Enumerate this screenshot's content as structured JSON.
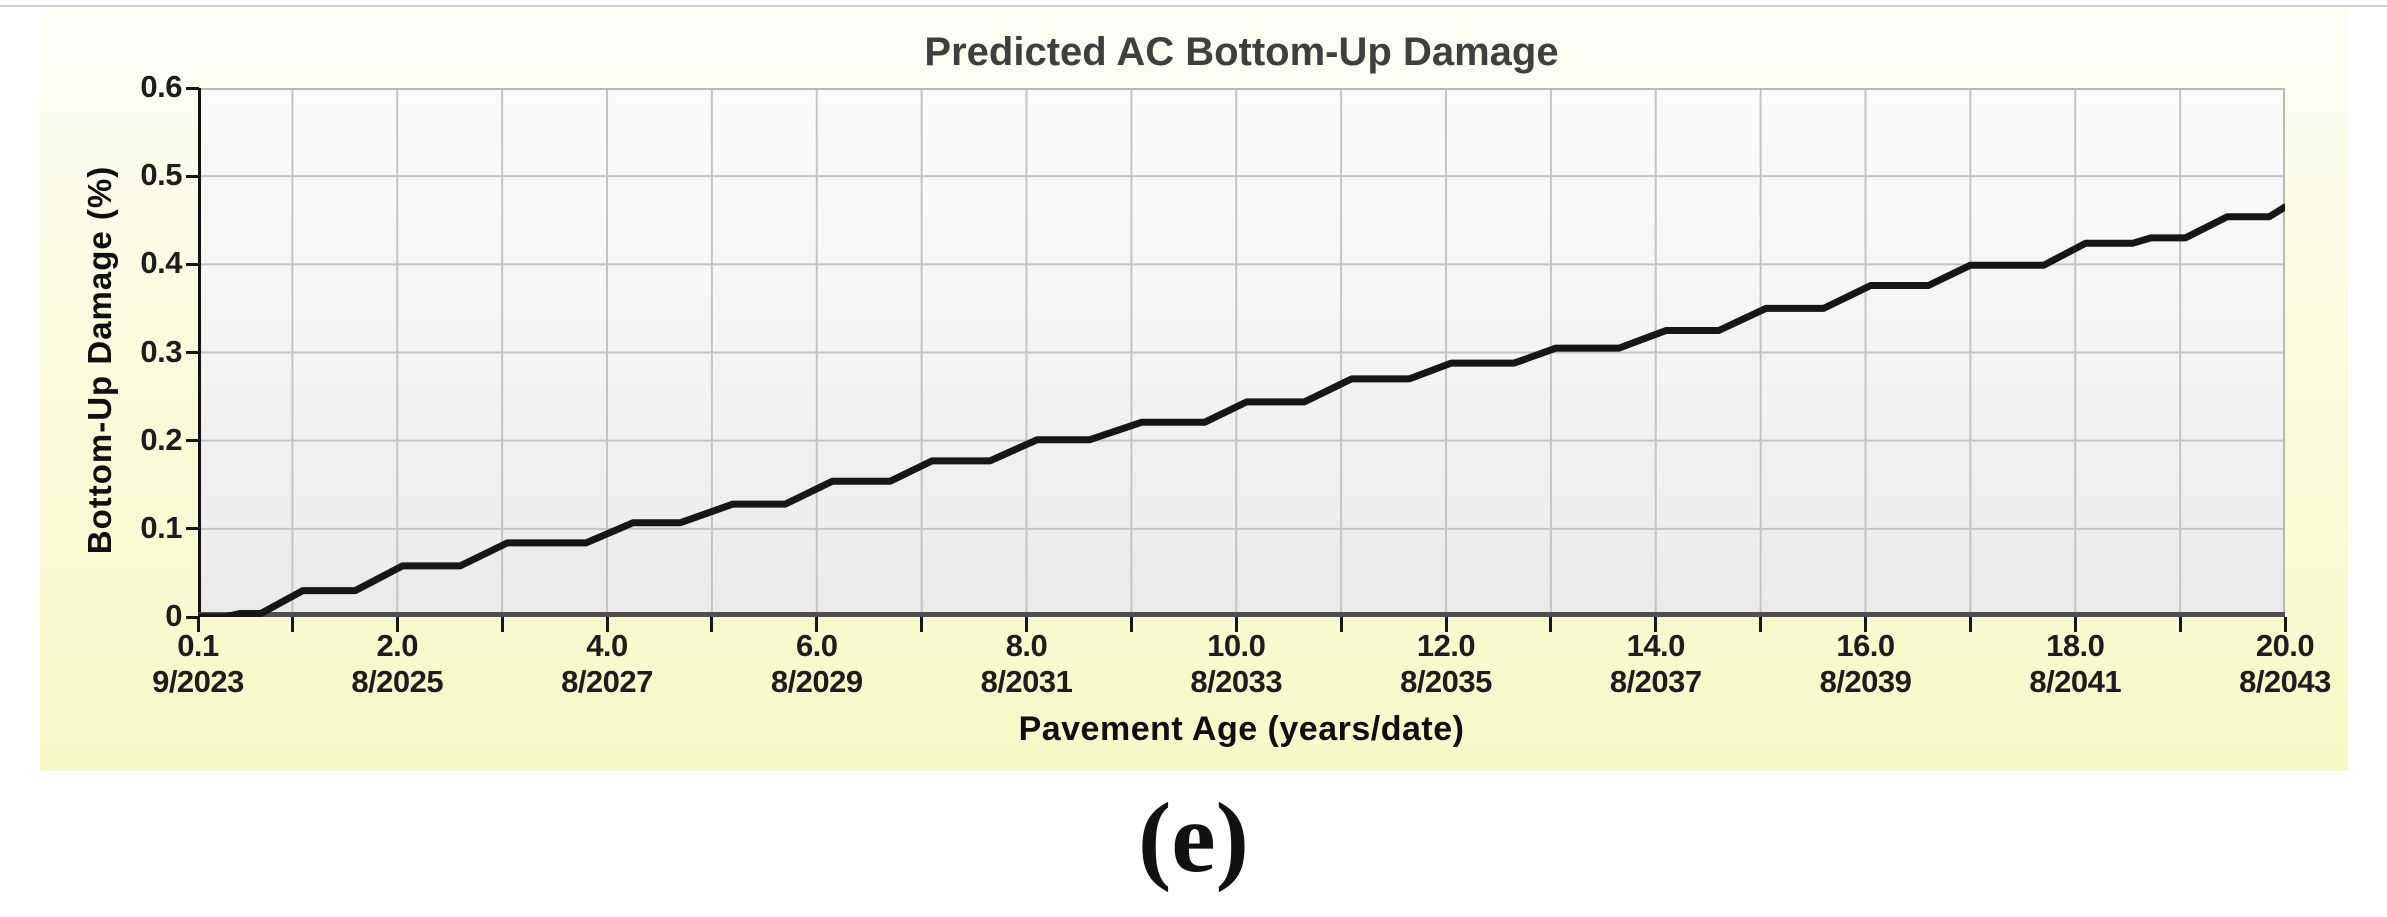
{
  "page": {
    "caption": "(e)"
  },
  "colors": {
    "panel_bg_top": "#fdfdf6",
    "panel_bg_bottom": "#f8f8c6",
    "plot_bg": "#f3f3f3",
    "gridline": "#c4c4c4",
    "plot_border": "#b9b9b9",
    "left_spine": "#111111",
    "bottom_spine": "#4f4f4f",
    "curve": "#161616",
    "title_text": "#3f3f3f",
    "label_text": "#1d1d1d"
  },
  "chart_data": {
    "type": "line",
    "title": "Predicted AC Bottom-Up Damage",
    "xlabel": "Pavement Age (years/date)",
    "ylabel": "Bottom-Up Damage (%)",
    "xlim": [
      0.1,
      20.0
    ],
    "ylim": [
      0,
      0.6
    ],
    "grid": true,
    "x_minor_tick_interval": 1,
    "x_major_ticks": [
      {
        "value": 0.1,
        "years": "0.1",
        "date": "9/2023"
      },
      {
        "value": 2.0,
        "years": "2.0",
        "date": "8/2025"
      },
      {
        "value": 4.0,
        "years": "4.0",
        "date": "8/2027"
      },
      {
        "value": 6.0,
        "years": "6.0",
        "date": "8/2029"
      },
      {
        "value": 8.0,
        "years": "8.0",
        "date": "8/2031"
      },
      {
        "value": 10.0,
        "years": "10.0",
        "date": "8/2033"
      },
      {
        "value": 12.0,
        "years": "12.0",
        "date": "8/2035"
      },
      {
        "value": 14.0,
        "years": "14.0",
        "date": "8/2037"
      },
      {
        "value": 16.0,
        "years": "16.0",
        "date": "8/2039"
      },
      {
        "value": 18.0,
        "years": "18.0",
        "date": "8/2041"
      },
      {
        "value": 20.0,
        "years": "20.0",
        "date": "8/2043"
      }
    ],
    "y_ticks": [
      0,
      0.1,
      0.2,
      0.3,
      0.4,
      0.5,
      0.6
    ],
    "y_tick_labels": [
      "0",
      "0.1",
      "0.2",
      "0.3",
      "0.4",
      "0.5",
      "0.6"
    ],
    "series": [
      {
        "name": "Predicted AC bottom-up damage",
        "points": [
          [
            0.1,
            0.0
          ],
          [
            0.35,
            0.0
          ],
          [
            0.5,
            0.004
          ],
          [
            0.7,
            0.004
          ],
          [
            1.1,
            0.03
          ],
          [
            1.6,
            0.03
          ],
          [
            2.05,
            0.058
          ],
          [
            2.6,
            0.058
          ],
          [
            3.05,
            0.084
          ],
          [
            3.8,
            0.084
          ],
          [
            4.25,
            0.107
          ],
          [
            4.7,
            0.107
          ],
          [
            5.2,
            0.128
          ],
          [
            5.7,
            0.128
          ],
          [
            6.15,
            0.154
          ],
          [
            6.7,
            0.154
          ],
          [
            7.1,
            0.177
          ],
          [
            7.65,
            0.177
          ],
          [
            8.1,
            0.201
          ],
          [
            8.6,
            0.201
          ],
          [
            9.1,
            0.221
          ],
          [
            9.7,
            0.221
          ],
          [
            10.1,
            0.244
          ],
          [
            10.65,
            0.244
          ],
          [
            11.1,
            0.27
          ],
          [
            11.65,
            0.27
          ],
          [
            12.05,
            0.288
          ],
          [
            12.65,
            0.288
          ],
          [
            13.05,
            0.305
          ],
          [
            13.65,
            0.305
          ],
          [
            14.1,
            0.325
          ],
          [
            14.6,
            0.325
          ],
          [
            15.05,
            0.35
          ],
          [
            15.6,
            0.35
          ],
          [
            16.05,
            0.376
          ],
          [
            16.6,
            0.376
          ],
          [
            17.0,
            0.399
          ],
          [
            17.7,
            0.399
          ],
          [
            18.1,
            0.424
          ],
          [
            18.55,
            0.424
          ],
          [
            18.72,
            0.43
          ],
          [
            19.05,
            0.43
          ],
          [
            19.45,
            0.454
          ],
          [
            19.85,
            0.454
          ],
          [
            20.0,
            0.465
          ]
        ]
      }
    ]
  }
}
